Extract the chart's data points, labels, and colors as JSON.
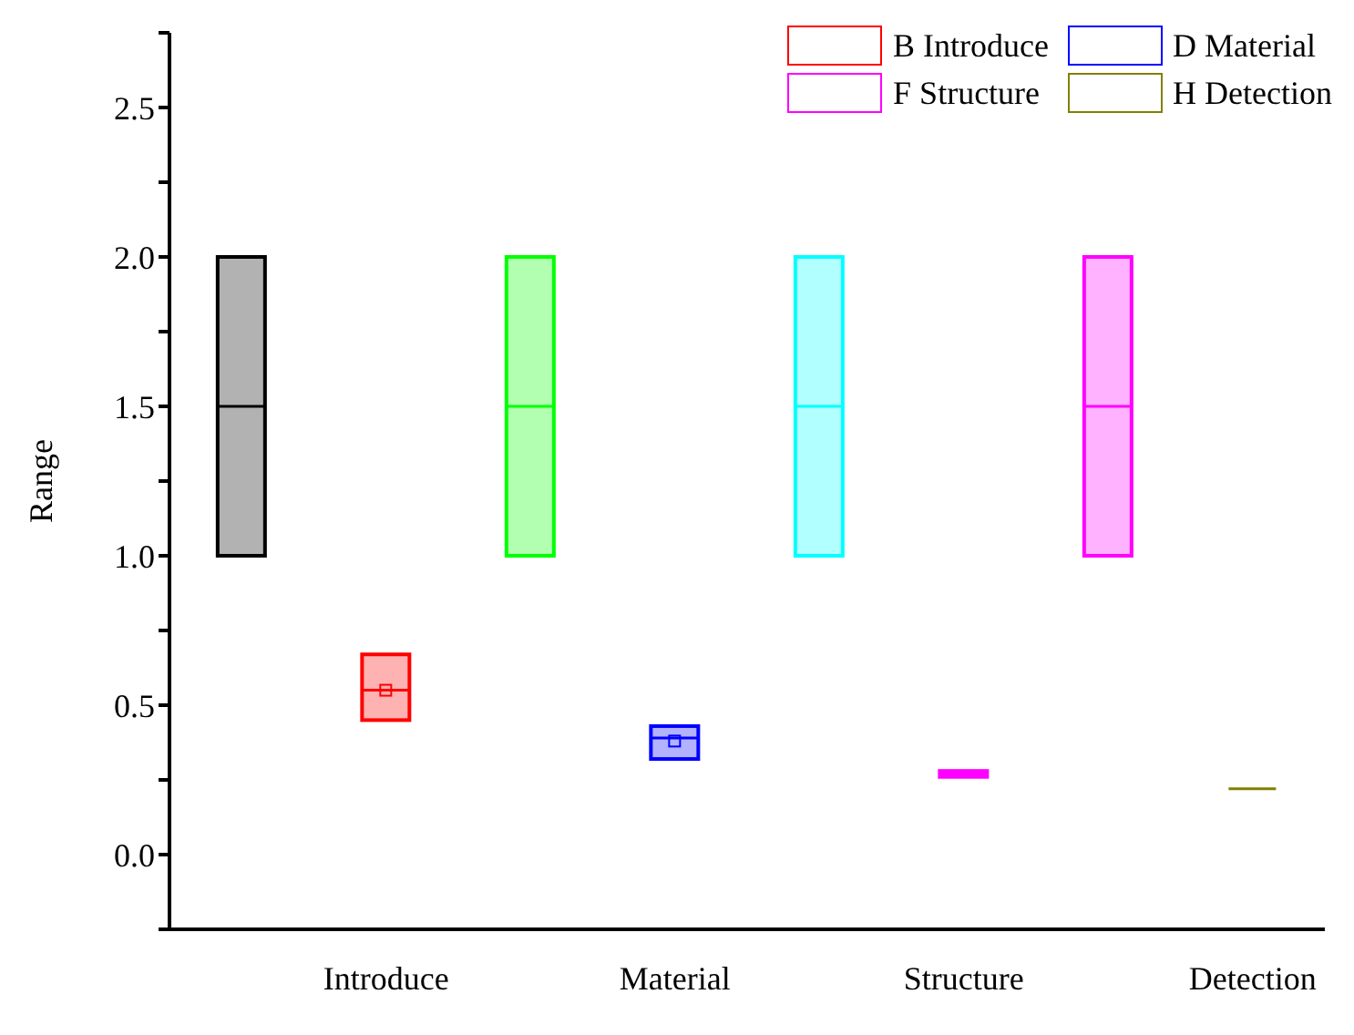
{
  "chart_data": {
    "type": "box",
    "ylabel": "Range",
    "categories": [
      null,
      "Introduce",
      null,
      "Material",
      null,
      "Structure",
      null,
      "Detection"
    ],
    "ylim": [
      -0.25,
      2.75
    ],
    "yticks": [
      {
        "value": -0.25,
        "label": null
      },
      {
        "value": 0,
        "label": "0.0"
      },
      {
        "value": 0.25,
        "label": null
      },
      0.5,
      {
        "value": 0.75,
        "label": null
      },
      {
        "value": 1,
        "label": "1.0"
      },
      {
        "value": 1.25,
        "label": null
      },
      1.5,
      {
        "value": 1.75,
        "label": null
      },
      {
        "value": 2,
        "label": "2.0"
      },
      {
        "value": 2.25,
        "label": null
      },
      2.5,
      {
        "value": 2.75,
        "label": null
      }
    ],
    "legend": "top right",
    "series": [
      {
        "color": "#000000",
        "boxes": [
          {
            "low": 1,
            "q1": 1,
            "median": 1.5,
            "q3": 2,
            "high": 2
          },
          null,
          null,
          null,
          null,
          null,
          null,
          null
        ]
      },
      {
        "name": "B Introduce",
        "color": "#ff0000",
        "boxes": [
          null,
          {
            "low": 0.45,
            "q1": 0.45,
            "median": 0.55,
            "q3": 0.67,
            "high": 0.67,
            "mean": 0.55
          },
          null,
          null,
          null,
          null,
          null,
          null
        ]
      },
      {
        "color": "#00ff00",
        "boxes": [
          null,
          null,
          {
            "low": 1,
            "q1": 1,
            "median": 1.5,
            "q3": 2,
            "high": 2
          },
          null,
          null,
          null,
          null,
          null
        ]
      },
      {
        "name": "D Material",
        "color": "#0000ff",
        "boxes": [
          null,
          null,
          null,
          {
            "low": 0.32,
            "q1": 0.32,
            "median": 0.39,
            "q3": 0.43,
            "high": 0.43,
            "mean": 0.38
          },
          null,
          null,
          null,
          null
        ]
      },
      {
        "color": "#00ffff",
        "boxes": [
          null,
          null,
          null,
          null,
          {
            "low": 1,
            "q1": 1,
            "median": 1.5,
            "q3": 2,
            "high": 2
          },
          null,
          null,
          null
        ]
      },
      {
        "name": "F Structure",
        "color": "#ff00ff",
        "boxes": [
          null,
          null,
          null,
          null,
          null,
          {
            "low": 0.26,
            "q1": 0.26,
            "median": 0.27,
            "q3": 0.28,
            "high": 0.28
          },
          null,
          null
        ]
      },
      {
        "color": "#ff00ff",
        "boxes": [
          null,
          null,
          null,
          null,
          null,
          null,
          {
            "low": 1,
            "q1": 1,
            "median": 1.5,
            "q3": 2,
            "high": 2
          },
          null
        ]
      },
      {
        "name": "H Detection",
        "color": "#808000",
        "boxes": [
          null,
          null,
          null,
          null,
          null,
          null,
          null,
          {
            "low": 0.22,
            "q1": 0.22,
            "median": 0.22,
            "q3": 0.22,
            "high": 0.22
          }
        ]
      }
    ]
  }
}
